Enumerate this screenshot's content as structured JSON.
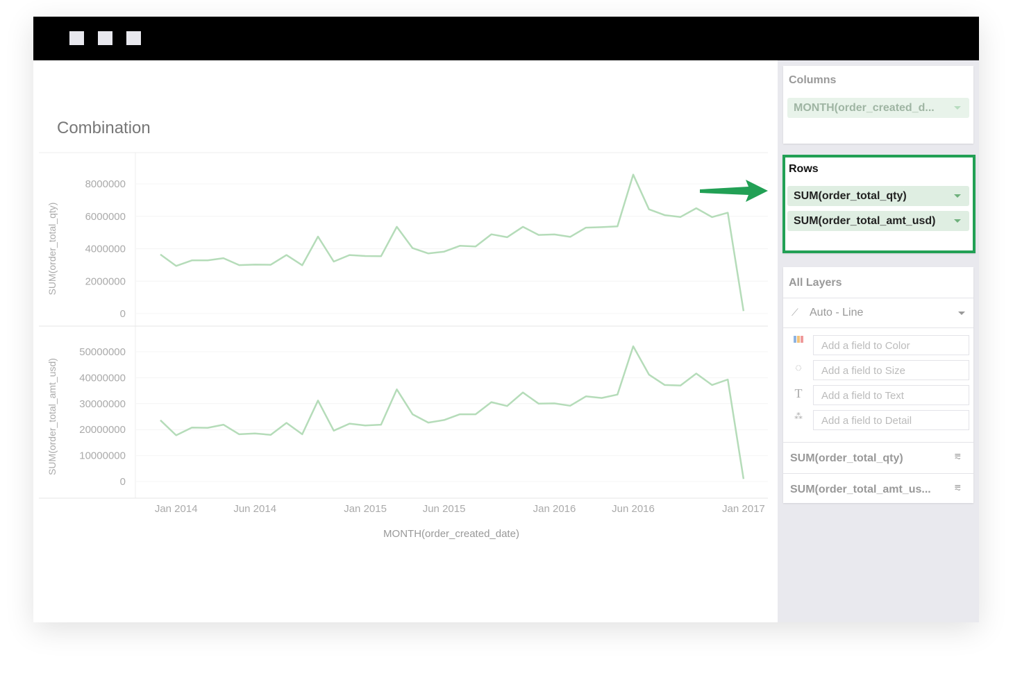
{
  "window": {
    "controls": [
      "square-1",
      "square-2",
      "square-3"
    ]
  },
  "chart_title": "Combination",
  "shelves": {
    "columns": {
      "label": "Columns",
      "pills": [
        "MONTH(order_created_d..."
      ]
    },
    "rows": {
      "label": "Rows",
      "pills": [
        "SUM(order_total_qty)",
        "SUM(order_total_amt_usd)"
      ],
      "highlight_color": "#22a055"
    }
  },
  "layers": {
    "title": "All Layers",
    "mark_type": "Auto - Line",
    "fields": [
      {
        "icon": "color-icon",
        "placeholder": "Add a field to Color"
      },
      {
        "icon": "size-icon",
        "placeholder": "Add a field to Size"
      },
      {
        "icon": "text-icon",
        "placeholder": "Add a field to Text"
      },
      {
        "icon": "detail-icon",
        "placeholder": "Add a field to Detail"
      }
    ],
    "items": [
      "SUM(order_total_qty)",
      "SUM(order_total_amt_us..."
    ]
  },
  "chart_data": {
    "type": "line",
    "line_color": "#b5dcb9",
    "xlabel": "MONTH(order_created_date)",
    "x": [
      "2013-12",
      "2014-01",
      "2014-02",
      "2014-03",
      "2014-04",
      "2014-05",
      "2014-06",
      "2014-07",
      "2014-08",
      "2014-09",
      "2014-10",
      "2014-11",
      "2014-12",
      "2015-01",
      "2015-02",
      "2015-03",
      "2015-04",
      "2015-05",
      "2015-06",
      "2015-07",
      "2015-08",
      "2015-09",
      "2015-10",
      "2015-11",
      "2015-12",
      "2016-01",
      "2016-02",
      "2016-03",
      "2016-04",
      "2016-05",
      "2016-06",
      "2016-07",
      "2016-08",
      "2016-09",
      "2016-10",
      "2016-11",
      "2016-12",
      "2017-01"
    ],
    "xticks": [
      {
        "label": "Jan 2014",
        "month": "2014-01"
      },
      {
        "label": "Jun 2014",
        "month": "2014-06"
      },
      {
        "label": "Jan 2015",
        "month": "2015-01"
      },
      {
        "label": "Jun 2015",
        "month": "2015-06"
      },
      {
        "label": "Jan 2016",
        "month": "2016-01"
      },
      {
        "label": "Jun 2016",
        "month": "2016-06"
      },
      {
        "label": "Jan 2017",
        "month": "2017-01"
      }
    ],
    "grid": true,
    "panels": [
      {
        "ylabel": "SUM(order_total_qty)",
        "ylim": [
          0,
          8000000
        ],
        "yticks": [
          {
            "v": 0,
            "label": "0"
          },
          {
            "v": 2000000,
            "label": "2000000"
          },
          {
            "v": 4000000,
            "label": "4000000"
          },
          {
            "v": 6000000,
            "label": "6000000"
          },
          {
            "v": 8000000,
            "label": "8000000"
          }
        ],
        "values": [
          3650000,
          2940000,
          3280000,
          3280000,
          3420000,
          2990000,
          3020000,
          3010000,
          3610000,
          2980000,
          4750000,
          3210000,
          3610000,
          3550000,
          3540000,
          5350000,
          4040000,
          3710000,
          3820000,
          4180000,
          4140000,
          4890000,
          4710000,
          5350000,
          4850000,
          4880000,
          4730000,
          5300000,
          5330000,
          5380000,
          8570000,
          6430000,
          6070000,
          5960000,
          6500000,
          5950000,
          6220000,
          160000
        ]
      },
      {
        "ylabel": "SUM(order_total_amt_usd)",
        "ylim": [
          0,
          50000000
        ],
        "yticks": [
          {
            "v": 0,
            "label": "0"
          },
          {
            "v": 10000000,
            "label": "10000000"
          },
          {
            "v": 20000000,
            "label": "20000000"
          },
          {
            "v": 30000000,
            "label": "30000000"
          },
          {
            "v": 40000000,
            "label": "40000000"
          },
          {
            "v": 50000000,
            "label": "50000000"
          }
        ],
        "values": [
          23600000,
          17800000,
          20800000,
          20700000,
          21900000,
          18200000,
          18500000,
          18000000,
          22600000,
          18200000,
          31200000,
          19600000,
          22300000,
          21600000,
          21900000,
          35500000,
          25900000,
          22700000,
          23700000,
          25900000,
          25900000,
          30600000,
          29100000,
          34300000,
          30000000,
          30100000,
          29200000,
          32800000,
          32200000,
          33500000,
          52100000,
          41200000,
          37200000,
          37000000,
          41600000,
          37200000,
          39300000,
          1000000
        ]
      }
    ]
  }
}
